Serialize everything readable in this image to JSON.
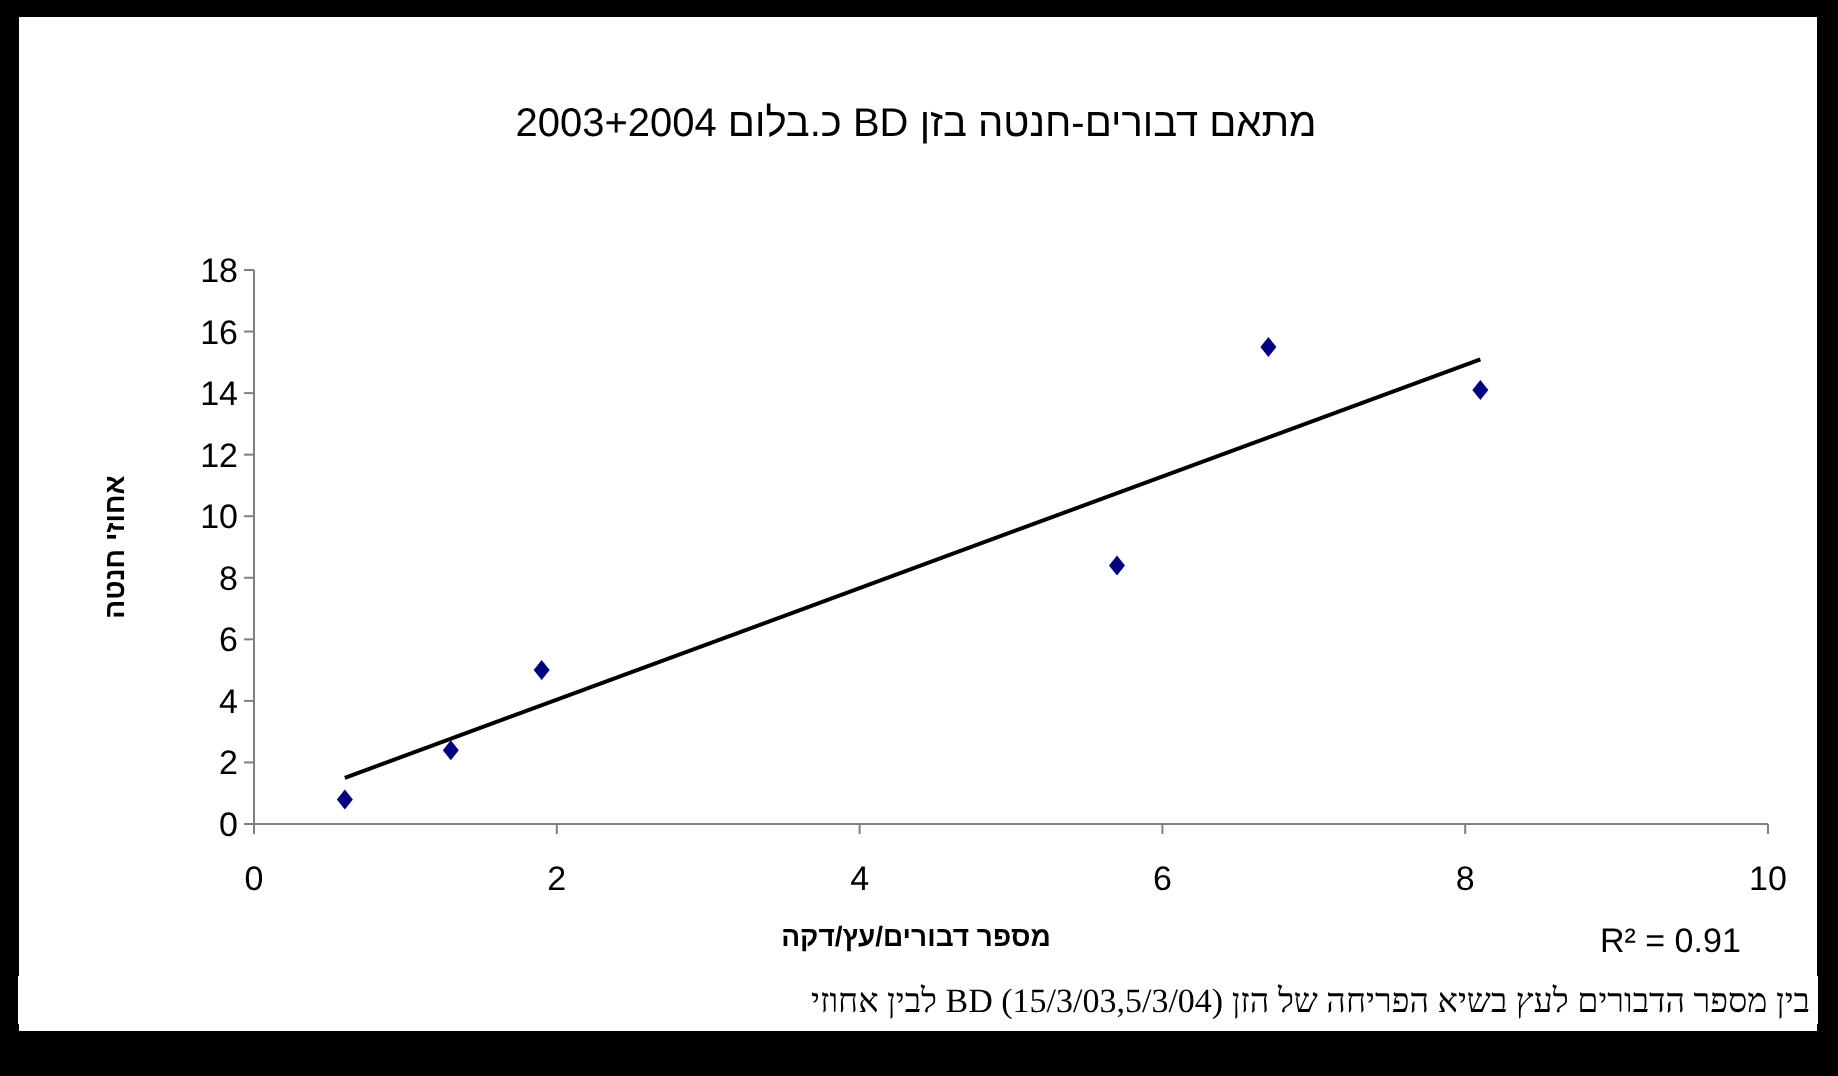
{
  "chart_data": {
    "type": "scatter",
    "title": "מתאם דבורים-חנטה בזן BD כ.בלום 2003+2004",
    "xlabel": "מספר דבורים/עץ/דקה",
    "ylabel": "אחוזי חנטה",
    "annotations": [
      "R² = 0.91",
      "בין מספר הדבורים לעץ בשיא הפריחה של הזן BD (15/3/03,5/3/04) לבין אחוזי"
    ],
    "x": [
      0.6,
      1.3,
      1.9,
      5.7,
      6.7,
      8.1
    ],
    "series": [
      {
        "color": "#000080",
        "marker": "diamond",
        "values": [
          0.8,
          2.4,
          5.0,
          8.4,
          15.5,
          14.1
        ]
      },
      {
        "type": "line",
        "color": "#000000",
        "marker": "none",
        "x": [
          0.6,
          8.1
        ],
        "values": [
          1.5,
          15.1
        ]
      }
    ],
    "xlim": [
      0,
      10
    ],
    "ylim": [
      0,
      18
    ],
    "xticks": [
      0,
      2,
      4,
      6,
      8,
      10
    ],
    "yticks": [
      0,
      2,
      4,
      6,
      8,
      10,
      12,
      14,
      16,
      18
    ],
    "grid": false
  }
}
